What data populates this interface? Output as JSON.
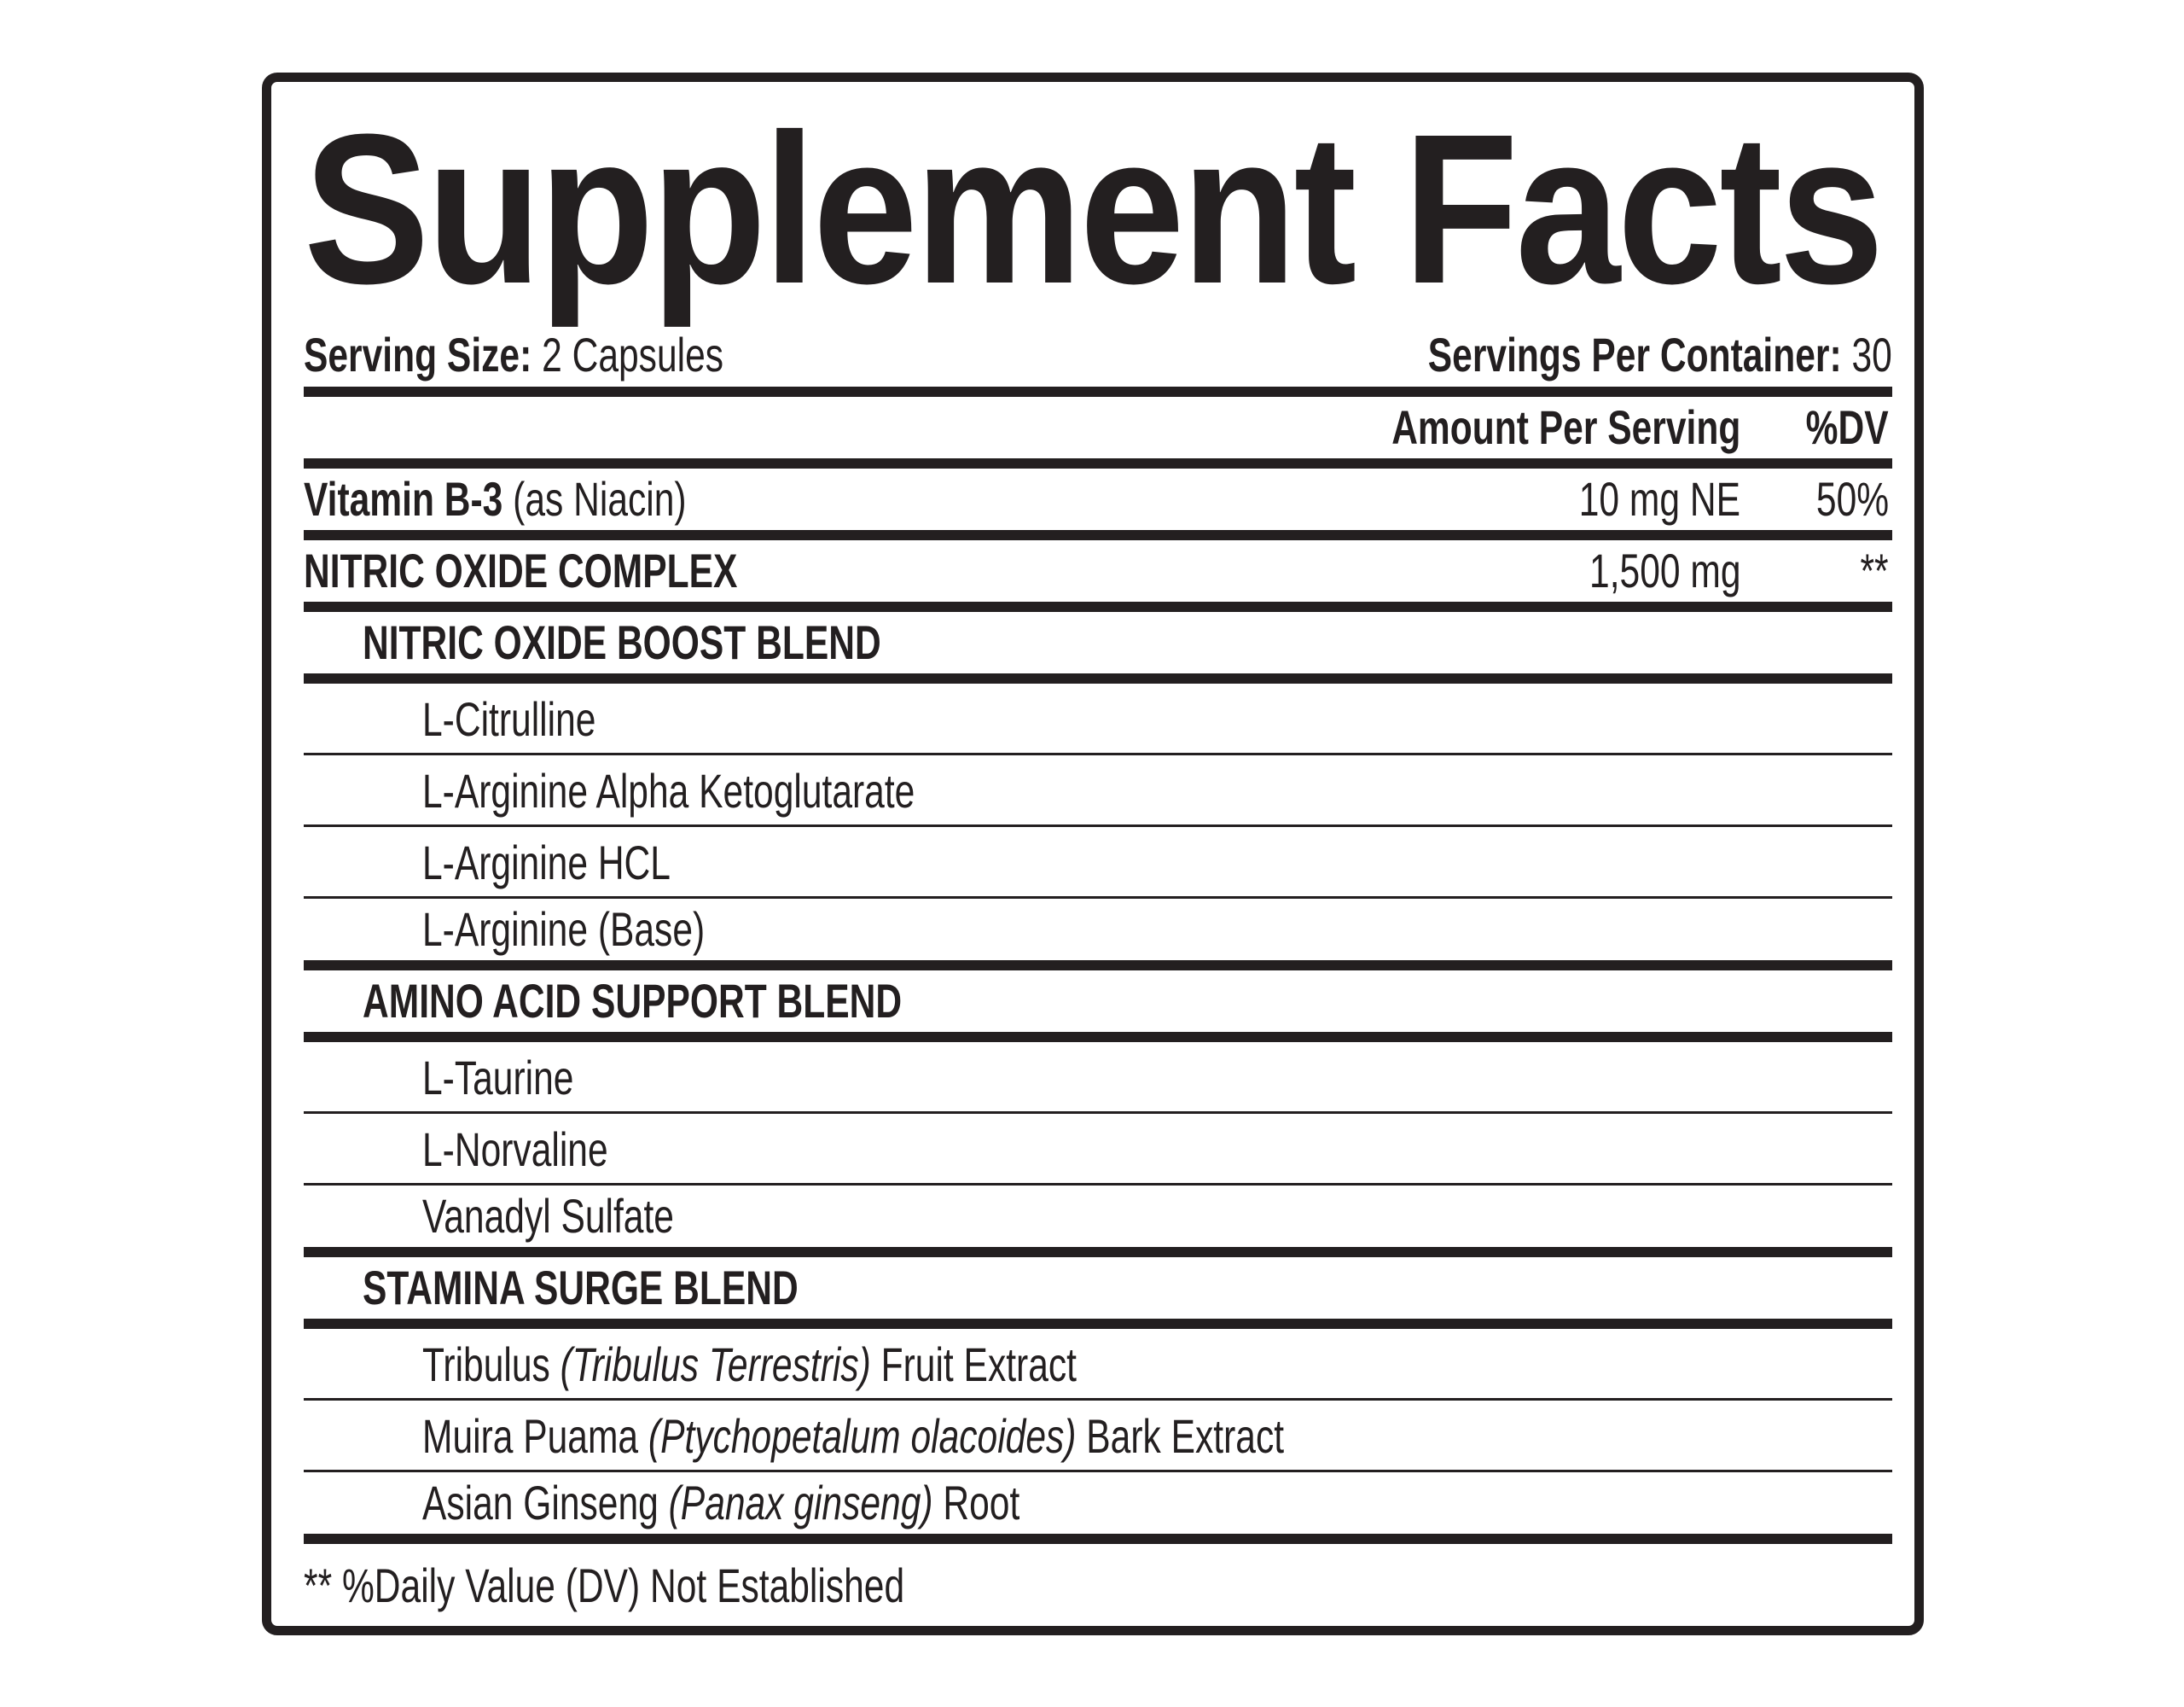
{
  "title": "Supplement Facts",
  "serving": {
    "size_label": "Serving Size:",
    "size_value": "2 Capsules",
    "per_container_label": "Servings Per Container:",
    "per_container_value": "30"
  },
  "header": {
    "amount": "Amount Per Serving",
    "dv": "%DV"
  },
  "rows": [
    {
      "type": "nutrient",
      "bold": "Vitamin B-3",
      "normal": "(as Niacin)",
      "amount": "10 mg NE",
      "dv": "50%"
    },
    {
      "type": "complex",
      "bold": "NITRIC OXIDE COMPLEX",
      "amount": "1,500 mg",
      "dv": "**"
    },
    {
      "type": "blend",
      "bold": "NITRIC OXIDE BOOST BLEND"
    },
    {
      "type": "item",
      "normal": "L-Citrulline",
      "thin": true
    },
    {
      "type": "item",
      "normal": "L-Arginine Alpha Ketoglutarate",
      "thin": true
    },
    {
      "type": "item",
      "normal": "L-Arginine HCL",
      "thin": true
    },
    {
      "type": "item",
      "normal": "L-Arginine (Base)"
    },
    {
      "type": "blend",
      "bold": "AMINO ACID SUPPORT BLEND"
    },
    {
      "type": "item",
      "normal": "L-Taurine",
      "thin": true
    },
    {
      "type": "item",
      "normal": "L-Norvaline",
      "thin": true
    },
    {
      "type": "item",
      "normal": "Vanadyl Sulfate"
    },
    {
      "type": "blend",
      "bold": "STAMINA SURGE BLEND"
    },
    {
      "type": "item",
      "normal": "Tribulus",
      "italic": "(Tribulus Terrestris)",
      "after": "Fruit Extract",
      "thin": true
    },
    {
      "type": "item",
      "normal": "Muira Puama",
      "italic": "(Ptychopetalum olacoides)",
      "after": "Bark Extract",
      "thin": true
    },
    {
      "type": "item",
      "normal": "Asian Ginseng",
      "italic": "(Panax ginseng)",
      "after": "Root"
    }
  ],
  "footnote": "** %Daily Value (DV) Not Established",
  "colors": {
    "ink": "#231f20",
    "background": "#ffffff"
  }
}
